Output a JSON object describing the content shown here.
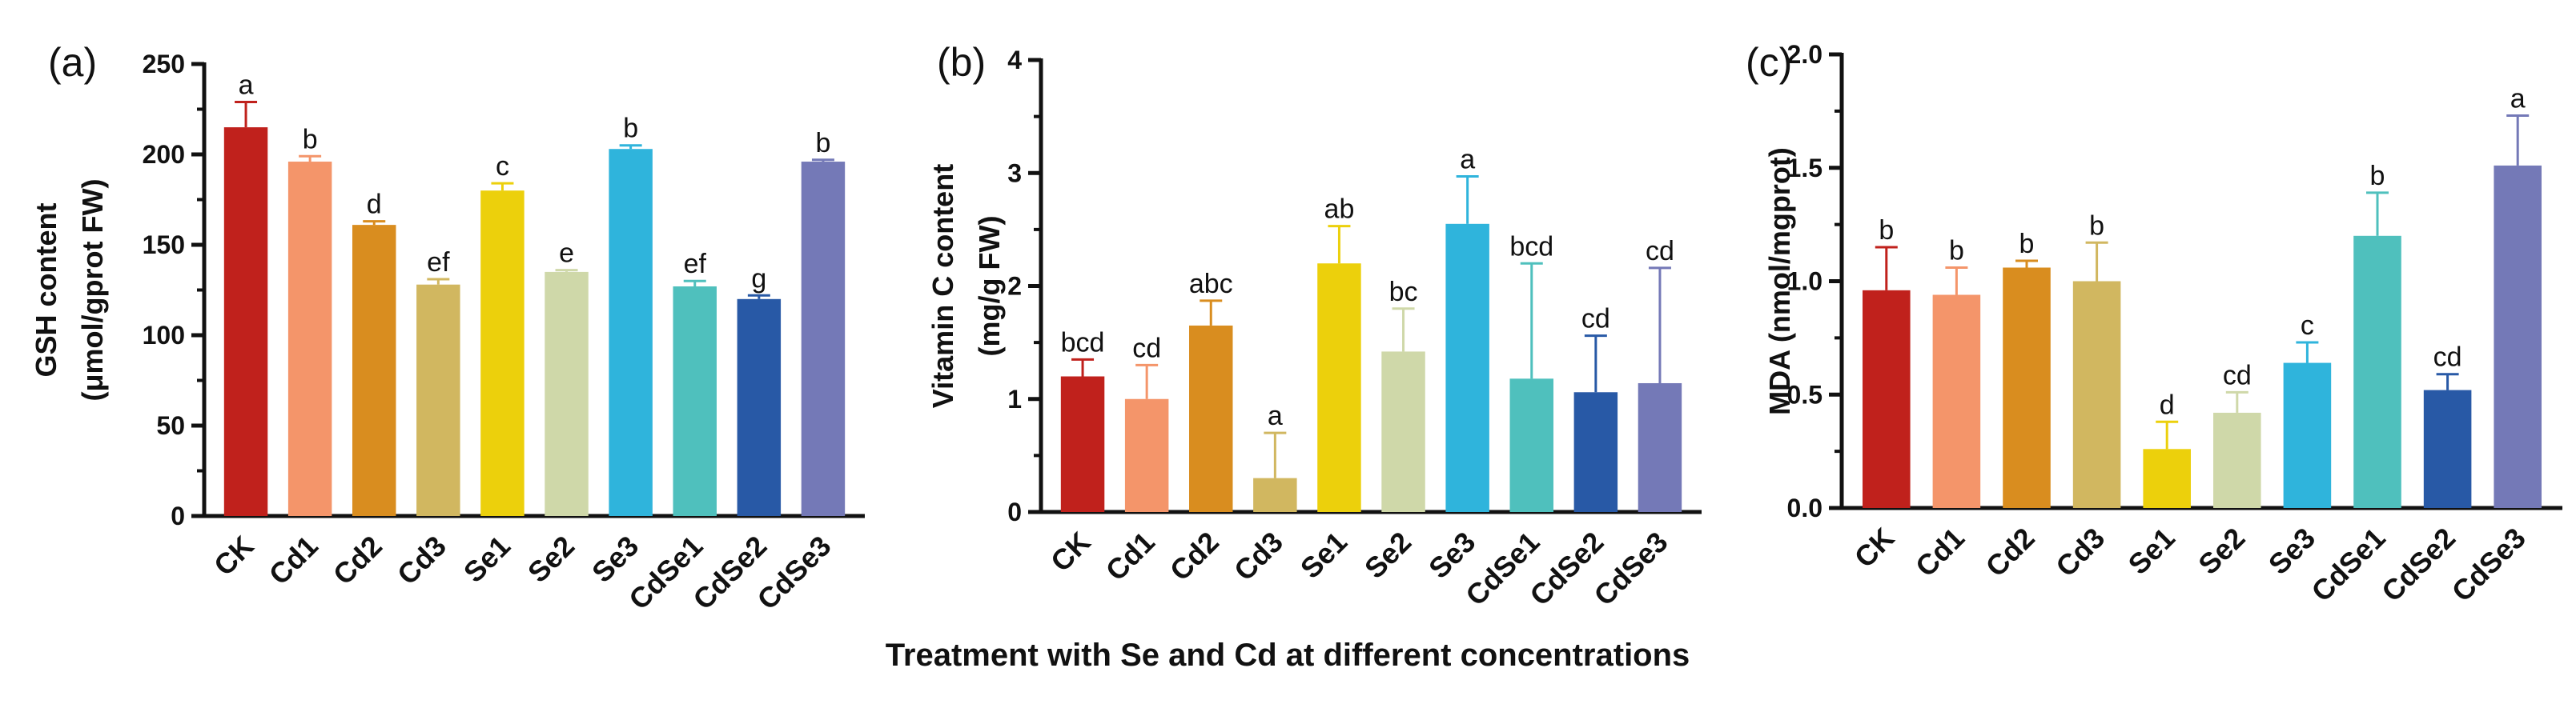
{
  "chart_data": [
    {
      "panel": "(a)",
      "type": "bar",
      "ylabel_line1": "GSH content",
      "ylabel_line2": "(μmol/gprot FW)",
      "ylim": [
        0,
        250
      ],
      "yticks": [
        "0",
        "50",
        "100",
        "150",
        "200",
        "250"
      ],
      "categories": [
        "CK",
        "Cd1",
        "Cd2",
        "Cd3",
        "Se1",
        "Se2",
        "Se3",
        "CdSe1",
        "CdSe2",
        "CdSe3"
      ],
      "values": [
        215,
        196,
        161,
        128,
        180,
        135,
        203,
        127,
        120,
        196
      ],
      "errors": [
        14,
        3,
        2,
        3,
        4,
        1,
        2,
        3,
        2,
        1
      ],
      "letters": [
        "a",
        "b",
        "d",
        "ef",
        "c",
        "e",
        "b",
        "ef",
        "g",
        "b"
      ]
    },
    {
      "panel": "(b)",
      "type": "bar",
      "ylabel_line1": "Vitamin C content",
      "ylabel_line2": "(mg/g FW)",
      "ylim": [
        0,
        4
      ],
      "yticks": [
        "0",
        "1",
        "2",
        "3",
        "4"
      ],
      "categories": [
        "CK",
        "Cd1",
        "Cd2",
        "Cd3",
        "Se1",
        "Se2",
        "Se3",
        "CdSe1",
        "CdSe2",
        "CdSe3"
      ],
      "values": [
        1.2,
        1.0,
        1.65,
        0.3,
        2.2,
        1.42,
        2.55,
        1.18,
        1.06,
        1.14
      ],
      "errors": [
        0.15,
        0.3,
        0.22,
        0.4,
        0.33,
        0.38,
        0.42,
        1.02,
        0.5,
        1.02
      ],
      "letters": [
        "bcd",
        "cd",
        "abc",
        "a",
        "ab",
        "bc",
        "a",
        "bcd",
        "cd",
        "cd"
      ]
    },
    {
      "panel": "(c)",
      "type": "bar",
      "ylabel_line1": "MDA (nmol/mgprot)",
      "ylabel_line2": "",
      "ylim": [
        0,
        2.0
      ],
      "yticks": [
        "0.0",
        "0.5",
        "1.0",
        "1.5",
        "2.0"
      ],
      "categories": [
        "CK",
        "Cd1",
        "Cd2",
        "Cd3",
        "Se1",
        "Se2",
        "Se3",
        "CdSe1",
        "CdSe2",
        "CdSe3"
      ],
      "values": [
        0.96,
        0.94,
        1.06,
        1.0,
        0.26,
        0.42,
        0.64,
        1.2,
        0.52,
        1.51
      ],
      "errors": [
        0.19,
        0.12,
        0.03,
        0.17,
        0.12,
        0.09,
        0.09,
        0.19,
        0.07,
        0.22
      ],
      "letters": [
        "b",
        "b",
        "b",
        "b",
        "d",
        "cd",
        "c",
        "b",
        "cd",
        "a"
      ]
    }
  ],
  "colors": [
    "#c0211c",
    "#f4956a",
    "#d98d1f",
    "#d1b760",
    "#ecd00c",
    "#cfd8a9",
    "#2fb4dc",
    "#4fc0bd",
    "#2859a6",
    "#7479b7"
  ],
  "xtitle": "Treatment with Se and Cd at different concentrations"
}
